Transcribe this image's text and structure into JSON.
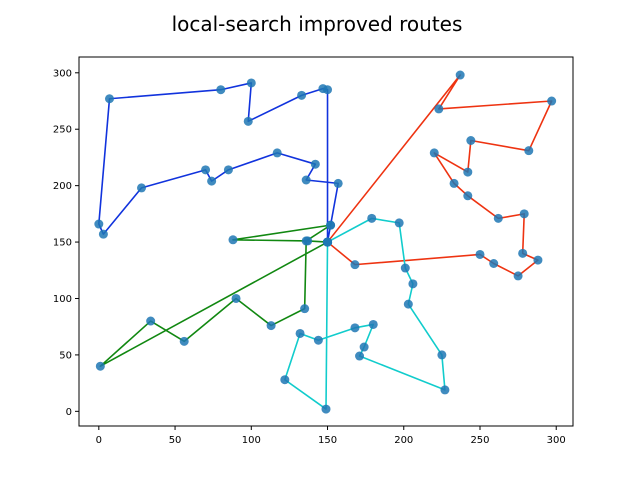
{
  "chart_data": {
    "type": "line",
    "title": "local-search improved routes",
    "xlabel": "",
    "ylabel": "",
    "xlim": [
      -13,
      311
    ],
    "ylim": [
      -13,
      314
    ],
    "xticks": [
      0,
      50,
      100,
      150,
      200,
      250,
      300
    ],
    "yticks": [
      0,
      50,
      100,
      150,
      200,
      250,
      300
    ],
    "grid": false,
    "marker_color": "#1f77b4",
    "depot": [
      150,
      150
    ],
    "series": [
      {
        "color": "#1133dd",
        "points": [
          [
            150,
            150
          ],
          [
            152,
            165
          ],
          [
            157,
            202
          ],
          [
            136,
            205
          ],
          [
            142,
            219
          ],
          [
            117,
            229
          ],
          [
            85,
            214
          ],
          [
            74,
            204
          ],
          [
            70,
            214
          ],
          [
            28,
            198
          ],
          [
            3,
            157
          ],
          [
            0,
            166
          ],
          [
            7,
            277
          ],
          [
            80,
            285
          ],
          [
            100,
            291
          ],
          [
            98,
            257
          ],
          [
            133,
            280
          ],
          [
            147,
            286
          ],
          [
            150,
            285
          ],
          [
            150,
            150
          ]
        ]
      },
      {
        "color": "#ee3311",
        "points": [
          [
            150,
            150
          ],
          [
            237,
            298
          ],
          [
            223,
            268
          ],
          [
            297,
            275
          ],
          [
            282,
            231
          ],
          [
            244,
            240
          ],
          [
            242,
            212
          ],
          [
            220,
            229
          ],
          [
            233,
            202
          ],
          [
            242,
            191
          ],
          [
            262,
            171
          ],
          [
            279,
            175
          ],
          [
            278,
            140
          ],
          [
            288,
            134
          ],
          [
            275,
            120
          ],
          [
            259,
            131
          ],
          [
            250,
            139
          ],
          [
            168,
            130
          ],
          [
            150,
            150
          ]
        ]
      },
      {
        "color": "#11cccc",
        "points": [
          [
            150,
            150
          ],
          [
            179,
            171
          ],
          [
            197,
            167
          ],
          [
            201,
            127
          ],
          [
            206,
            113
          ],
          [
            203,
            95
          ],
          [
            225,
            50
          ],
          [
            227,
            19
          ],
          [
            171,
            49
          ],
          [
            174,
            57
          ],
          [
            180,
            77
          ],
          [
            168,
            74
          ],
          [
            144,
            63
          ],
          [
            132,
            69
          ],
          [
            122,
            28
          ],
          [
            149,
            2
          ],
          [
            150,
            150
          ]
        ]
      },
      {
        "color": "#118811",
        "points": [
          [
            150,
            150
          ],
          [
            137,
            151
          ],
          [
            88,
            152
          ],
          [
            152,
            165
          ],
          [
            136,
            151
          ],
          [
            135,
            91
          ],
          [
            113,
            76
          ],
          [
            90,
            100
          ],
          [
            56,
            62
          ],
          [
            34,
            80
          ],
          [
            1,
            40
          ],
          [
            150,
            150
          ]
        ]
      }
    ]
  }
}
